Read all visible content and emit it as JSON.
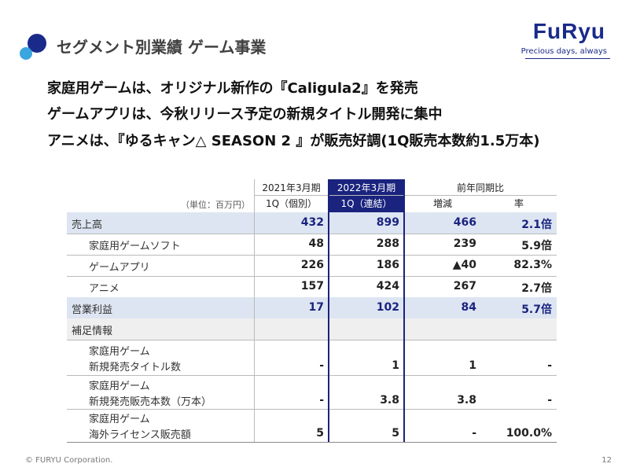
{
  "header": {
    "title": "セグメント別業績 ゲーム事業",
    "logo": "FuRyu",
    "tagline": "Precious days, always"
  },
  "headlines": [
    "家庭用ゲームは、オリジナル新作の『Caligula2』を発売",
    "ゲームアプリは、今秋リリース予定の新規タイトル開発に集中",
    "アニメは、『ゆるキャン△ SEASON 2 』が販売好調(1Q販売本数約1.5万本)"
  ],
  "table": {
    "unit": "（単位：百万円）",
    "columns": [
      [
        "2021年3月期",
        "1Q（個別）"
      ],
      [
        "2022年3月期",
        "1Q（連結）"
      ]
    ],
    "comparison": {
      "title": "前年同期比",
      "columns": [
        "増減",
        "率"
      ]
    },
    "rows": [
      {
        "label": [
          "売上高"
        ],
        "cells": [
          "432",
          "899",
          "466",
          "2.1倍"
        ]
      },
      {
        "label": [
          "家庭用ゲームソフト"
        ],
        "cells": [
          "48",
          "288",
          "239",
          "5.9倍"
        ]
      },
      {
        "label": [
          "ゲームアプリ"
        ],
        "cells": [
          "226",
          "186",
          "▲40",
          "82.3%"
        ]
      },
      {
        "label": [
          "アニメ"
        ],
        "cells": [
          "157",
          "424",
          "267",
          "2.7倍"
        ]
      },
      {
        "label": [
          "営業利益"
        ],
        "cells": [
          "17",
          "102",
          "84",
          "5.7倍"
        ]
      },
      {
        "label": [
          "補足情報"
        ],
        "cells": []
      },
      {
        "label": [
          "家庭用ゲーム",
          "新規発売タイトル数"
        ],
        "cells": [
          "-",
          "1",
          "1",
          "-"
        ]
      },
      {
        "label": [
          "家庭用ゲーム",
          "新規発売販売本数（万本）"
        ],
        "cells": [
          "-",
          "3.8",
          "3.8",
          "-"
        ]
      },
      {
        "label": [
          "家庭用ゲーム",
          "海外ライセンス販売額"
        ],
        "cells": [
          "5",
          "5",
          "-",
          "100.0%"
        ]
      }
    ]
  },
  "footer": {
    "copyright": "© FURYU Corporation.",
    "page": "12"
  }
}
